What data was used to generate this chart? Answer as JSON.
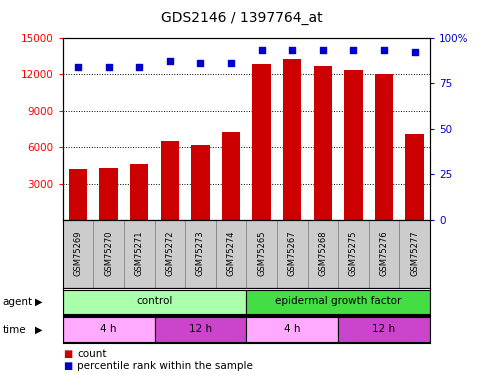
{
  "title": "GDS2146 / 1397764_at",
  "samples": [
    "GSM75269",
    "GSM75270",
    "GSM75271",
    "GSM75272",
    "GSM75273",
    "GSM75274",
    "GSM75265",
    "GSM75267",
    "GSM75268",
    "GSM75275",
    "GSM75276",
    "GSM75277"
  ],
  "bar_values": [
    4200,
    4300,
    4600,
    6500,
    6200,
    7200,
    12800,
    13200,
    12700,
    12300,
    12000,
    7100
  ],
  "percentile_values": [
    84,
    84,
    84,
    87,
    86,
    86,
    93,
    93,
    93,
    93,
    93,
    92
  ],
  "bar_color": "#cc0000",
  "dot_color": "#0000cc",
  "ylim_left": [
    0,
    15000
  ],
  "ylim_right": [
    0,
    100
  ],
  "yticks_left": [
    3000,
    6000,
    9000,
    12000,
    15000
  ],
  "ytick_labels_left": [
    "3000",
    "6000",
    "9000",
    "12000",
    "15000"
  ],
  "yticks_right": [
    0,
    25,
    50,
    75,
    100
  ],
  "ytick_labels_right": [
    "0",
    "25",
    "50",
    "75",
    "100%"
  ],
  "agent_groups": [
    {
      "label": "control",
      "start": 0,
      "end": 6,
      "color": "#aaffaa"
    },
    {
      "label": "epidermal growth factor",
      "start": 6,
      "end": 12,
      "color": "#44dd44"
    }
  ],
  "time_groups": [
    {
      "label": "4 h",
      "start": 0,
      "end": 3,
      "color": "#ffaaff"
    },
    {
      "label": "12 h",
      "start": 3,
      "end": 6,
      "color": "#cc44cc"
    },
    {
      "label": "4 h",
      "start": 6,
      "end": 9,
      "color": "#ffaaff"
    },
    {
      "label": "12 h",
      "start": 9,
      "end": 12,
      "color": "#cc44cc"
    }
  ],
  "legend_count_color": "#cc0000",
  "legend_dot_color": "#0000cc",
  "plot_bg": "#ffffff",
  "label_bg": "#cccccc",
  "title_fontsize": 10
}
